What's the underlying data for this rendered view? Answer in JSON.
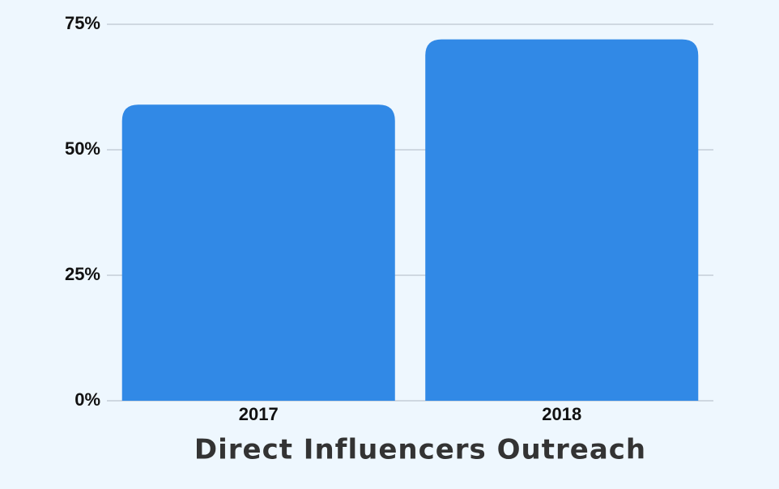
{
  "chart_data": {
    "type": "bar",
    "title": "Direct Influencers Outreach",
    "categories": [
      "2017",
      "2018"
    ],
    "values": [
      59,
      72
    ],
    "color": "#3189e6",
    "ylim": [
      0,
      75
    ],
    "yticks": [
      {
        "value": 0,
        "label": "0%"
      },
      {
        "value": 25,
        "label": "25%"
      },
      {
        "value": 50,
        "label": "50%"
      },
      {
        "value": 75,
        "label": "75%"
      }
    ],
    "grid": true
  }
}
